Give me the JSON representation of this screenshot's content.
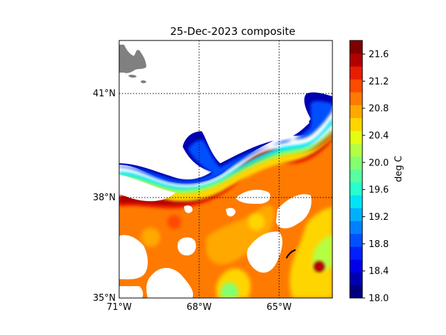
{
  "title": "25-Dec-2023 composite",
  "colorbar": {
    "label": "deg C",
    "min": 18.0,
    "max": 21.8,
    "step": 0.2,
    "tick_labels": [
      "21.6",
      "21.2",
      "20.8",
      "20.4",
      "20.0",
      "19.6",
      "19.2",
      "18.8",
      "18.4",
      "18.0"
    ],
    "colors": [
      "#00007f",
      "#0000b2",
      "#0000ea",
      "#0020ff",
      "#0050ff",
      "#0080ff",
      "#00b0ff",
      "#00e4f7",
      "#27ffcf",
      "#57ffa0",
      "#84ff72",
      "#b4ff43",
      "#e3ff13",
      "#ffd500",
      "#ffa800",
      "#ff7a00",
      "#ff4a00",
      "#ea1c00",
      "#b20000",
      "#7f0000"
    ]
  },
  "map": {
    "lon_range": [
      -71,
      -63
    ],
    "lat_range": [
      35,
      42.2
    ],
    "lon_ticks": [
      "71°W",
      "68°W",
      "65°W"
    ],
    "lat_ticks": [
      "41°N",
      "38°N",
      "35°N"
    ],
    "grid": "dotted",
    "land_color": "#808080",
    "nodata_color": "#ffffff"
  }
}
